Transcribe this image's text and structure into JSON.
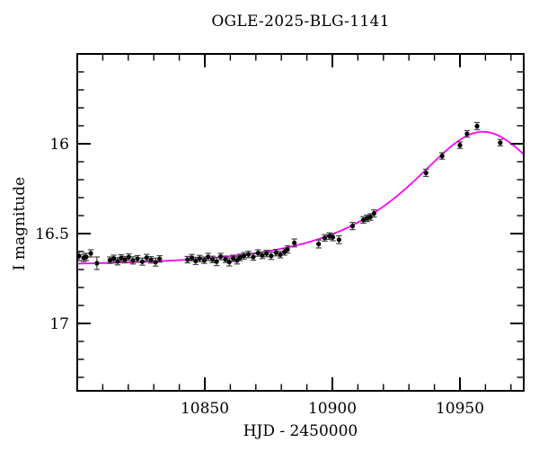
{
  "chart_data": {
    "type": "scatter",
    "title": "OGLE-2025-BLG-1141",
    "xlabel": "HJD - 2450000",
    "ylabel": "I magnitude",
    "xlim": [
      10800,
      10975
    ],
    "ylim_mag_bottom_top": [
      17.375,
      15.5
    ],
    "y_axis_inverted": true,
    "grid": false,
    "legend": null,
    "x_major_ticks": [
      {
        "value": 10850,
        "label": "10850"
      },
      {
        "value": 10900,
        "label": "10900"
      },
      {
        "value": 10950,
        "label": "10950"
      }
    ],
    "x_minor_ticks": [
      10810,
      10820,
      10830,
      10840,
      10860,
      10870,
      10880,
      10890,
      10910,
      10920,
      10930,
      10940,
      10960,
      10970
    ],
    "y_major_ticks": [
      {
        "value": 16,
        "label": "16"
      },
      {
        "value": 16.5,
        "label": "16.5"
      },
      {
        "value": 17,
        "label": "17"
      }
    ],
    "y_minor_ticks": [
      15.6,
      15.7,
      15.8,
      15.9,
      16.1,
      16.2,
      16.3,
      16.4,
      16.6,
      16.7,
      16.8,
      16.9,
      17.1,
      17.2,
      17.3
    ],
    "colors": {
      "axis": "#000000",
      "data_points": "#000000",
      "error_bars": "#444444",
      "model_curve": "#ff00ff",
      "background": "#ffffff"
    },
    "series": [
      {
        "name": "OGLE I-band photometry",
        "type": "scatter",
        "marker": "filled-circle",
        "color": "#000000",
        "points_hjd_mag_err": [
          [
            10800.7,
            16.625,
            0.025
          ],
          [
            10802.5,
            16.635,
            0.02
          ],
          [
            10803.5,
            16.63,
            0.02
          ],
          [
            10805.3,
            16.61,
            0.02
          ],
          [
            10807.7,
            16.665,
            0.035
          ],
          [
            10812.8,
            16.648,
            0.018
          ],
          [
            10814.3,
            16.638,
            0.018
          ],
          [
            10815.8,
            16.654,
            0.02
          ],
          [
            10817.2,
            16.636,
            0.018
          ],
          [
            10818.7,
            16.645,
            0.018
          ],
          [
            10820.2,
            16.631,
            0.018
          ],
          [
            10821.8,
            16.649,
            0.02
          ],
          [
            10823.6,
            16.64,
            0.018
          ],
          [
            10825.5,
            16.656,
            0.02
          ],
          [
            10827.2,
            16.634,
            0.018
          ],
          [
            10828.9,
            16.646,
            0.018
          ],
          [
            10830.7,
            16.659,
            0.022
          ],
          [
            10832.3,
            16.641,
            0.018
          ],
          [
            10843.2,
            16.645,
            0.018
          ],
          [
            10844.9,
            16.634,
            0.018
          ],
          [
            10846.4,
            16.652,
            0.02
          ],
          [
            10848.0,
            16.639,
            0.018
          ],
          [
            10849.8,
            16.648,
            0.018
          ],
          [
            10851.3,
            16.63,
            0.02
          ],
          [
            10853.0,
            16.644,
            0.018
          ],
          [
            10854.6,
            16.656,
            0.022
          ],
          [
            10856.2,
            16.628,
            0.018
          ],
          [
            10858.1,
            16.643,
            0.018
          ],
          [
            10859.6,
            16.658,
            0.022
          ],
          [
            10861.1,
            16.638,
            0.018
          ],
          [
            10862.6,
            16.649,
            0.02
          ],
          [
            10863.8,
            16.633,
            0.018
          ],
          [
            10865.3,
            16.624,
            0.018
          ],
          [
            10867.1,
            16.616,
            0.018
          ],
          [
            10869.0,
            16.63,
            0.018
          ],
          [
            10870.9,
            16.608,
            0.018
          ],
          [
            10872.5,
            16.621,
            0.018
          ],
          [
            10874.2,
            16.611,
            0.018
          ],
          [
            10876.0,
            16.624,
            0.02
          ],
          [
            10877.9,
            16.606,
            0.018
          ],
          [
            10879.6,
            16.617,
            0.018
          ],
          [
            10881.2,
            16.602,
            0.018
          ],
          [
            10882.4,
            16.588,
            0.02
          ],
          [
            10885.1,
            16.552,
            0.022
          ],
          [
            10894.6,
            16.558,
            0.022
          ],
          [
            10897.0,
            16.524,
            0.018
          ],
          [
            10898.8,
            16.514,
            0.018
          ],
          [
            10900.2,
            16.52,
            0.02
          ],
          [
            10902.6,
            16.534,
            0.022
          ],
          [
            10907.9,
            16.458,
            0.02
          ],
          [
            10912.1,
            16.424,
            0.018
          ],
          [
            10913.5,
            16.415,
            0.018
          ],
          [
            10914.9,
            16.408,
            0.018
          ],
          [
            10916.3,
            16.388,
            0.02
          ],
          [
            10936.7,
            16.162,
            0.02
          ],
          [
            10943.0,
            16.068,
            0.018
          ],
          [
            10950.0,
            16.008,
            0.018
          ],
          [
            10952.8,
            15.945,
            0.018
          ],
          [
            10956.7,
            15.902,
            0.02
          ],
          [
            10965.8,
            15.994,
            0.018
          ]
        ]
      },
      {
        "name": "Paczynski microlensing model fit",
        "type": "line",
        "color": "#ff00ff",
        "model_params": {
          "t0": 10959,
          "tE": 48.5,
          "u0": 0.56,
          "I0": 16.68
        },
        "peak_mag_approx": 15.93,
        "baseline_mag_approx": 16.66
      }
    ]
  }
}
